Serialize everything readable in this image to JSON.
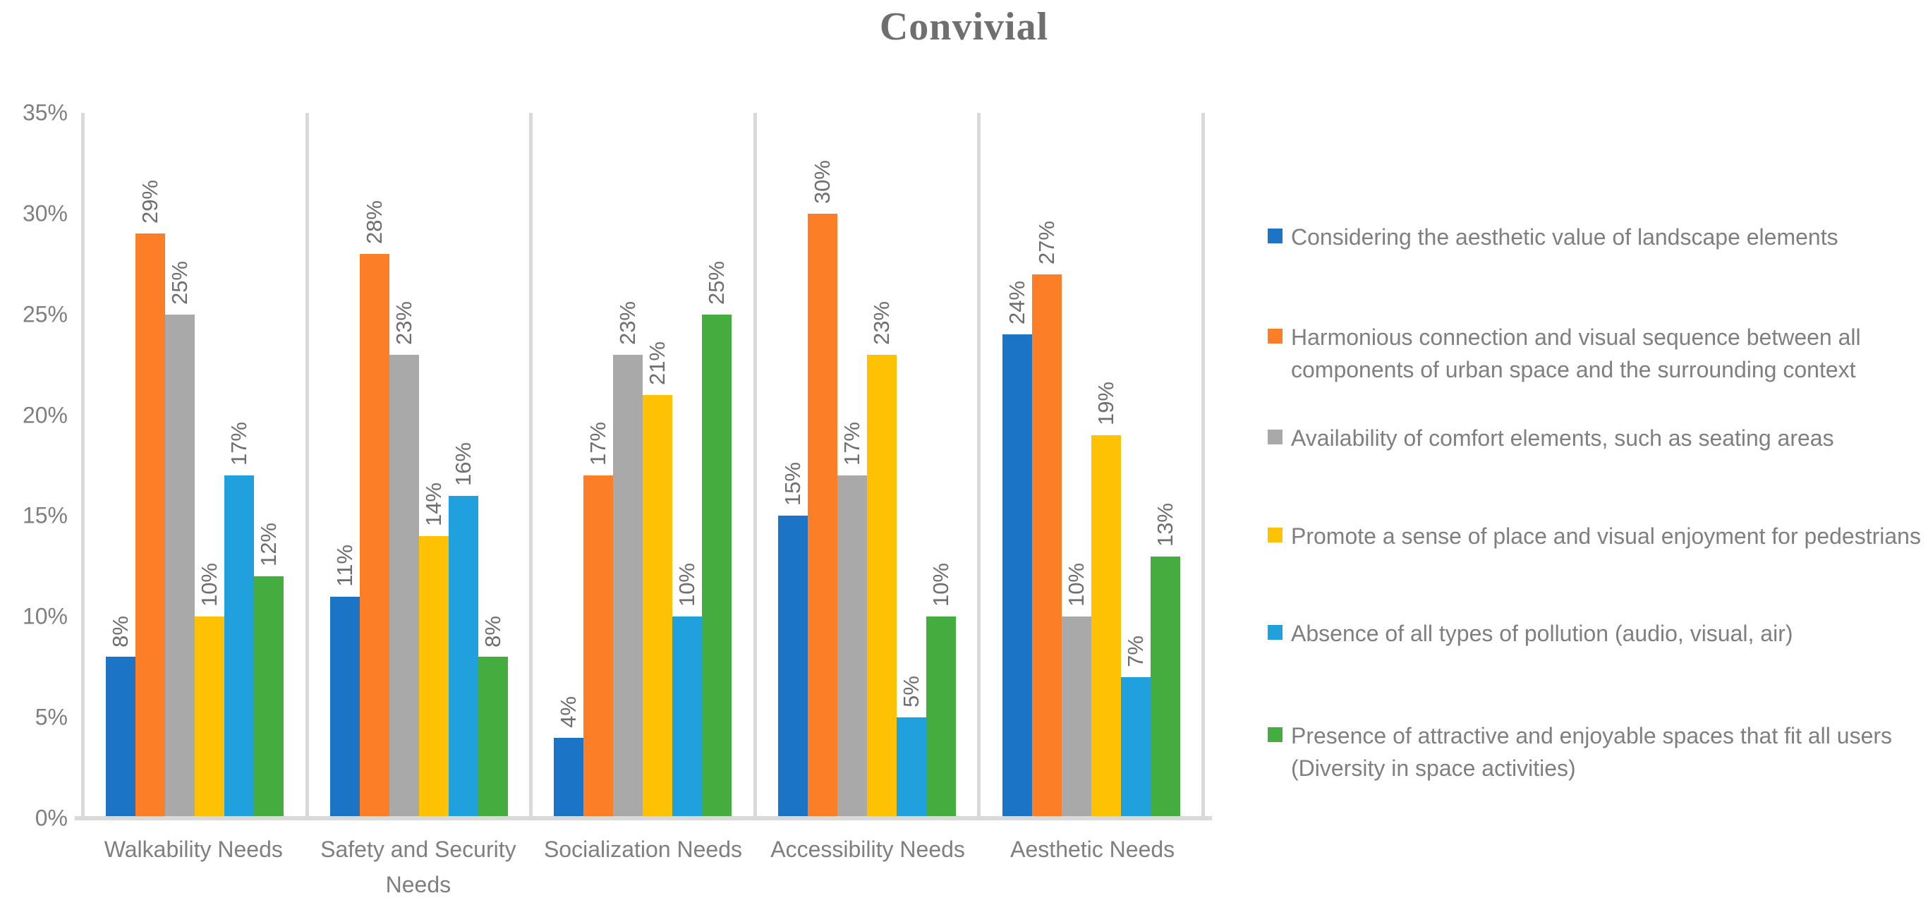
{
  "chart_data": {
    "type": "bar",
    "title": "Convivial",
    "categories": [
      "Walkability Needs",
      "Safety and Security Needs",
      "Socialization Needs",
      "Accessibility Needs",
      "Aesthetic Needs"
    ],
    "series": [
      {
        "name": "Considering the aesthetic value of landscape elements",
        "color": "#1b74c5",
        "values": [
          8,
          11,
          4,
          15,
          24
        ]
      },
      {
        "name": "Harmonious connection and visual sequence between all components of urban space and the surrounding context",
        "color": "#fc7e27",
        "values": [
          29,
          28,
          17,
          30,
          27
        ]
      },
      {
        "name": "Availability of comfort elements, such as seating areas",
        "color": "#a9a9a9",
        "values": [
          25,
          23,
          23,
          17,
          10
        ]
      },
      {
        "name": "Promote a sense of place and visual enjoyment for pedestrians",
        "color": "#ffc103",
        "values": [
          10,
          14,
          21,
          23,
          19
        ]
      },
      {
        "name": "Absence of all types of pollution (audio, visual, air)",
        "color": "#20a0dc",
        "values": [
          17,
          16,
          10,
          5,
          7
        ]
      },
      {
        "name": "Presence of attractive and enjoyable spaces that fit all users (Diversity in space activities)",
        "color": "#45ad40",
        "values": [
          12,
          8,
          25,
          10,
          13
        ]
      }
    ],
    "y_axis": {
      "tick_labels": [
        "0%",
        "5%",
        "10%",
        "15%",
        "20%",
        "25%",
        "30%",
        "35%"
      ],
      "min": 0,
      "max": 35,
      "step": 5
    },
    "data_label_suffix": "%",
    "data_label_rotation_deg": -90,
    "legend_position": "right",
    "gridlines": "vertical category separators only",
    "colors": {
      "axis_line": "#d9d9d9",
      "title_text": "#6f6f6f",
      "axis_text": "#7f7f7f",
      "data_label_text": "#6e6e6e"
    }
  }
}
